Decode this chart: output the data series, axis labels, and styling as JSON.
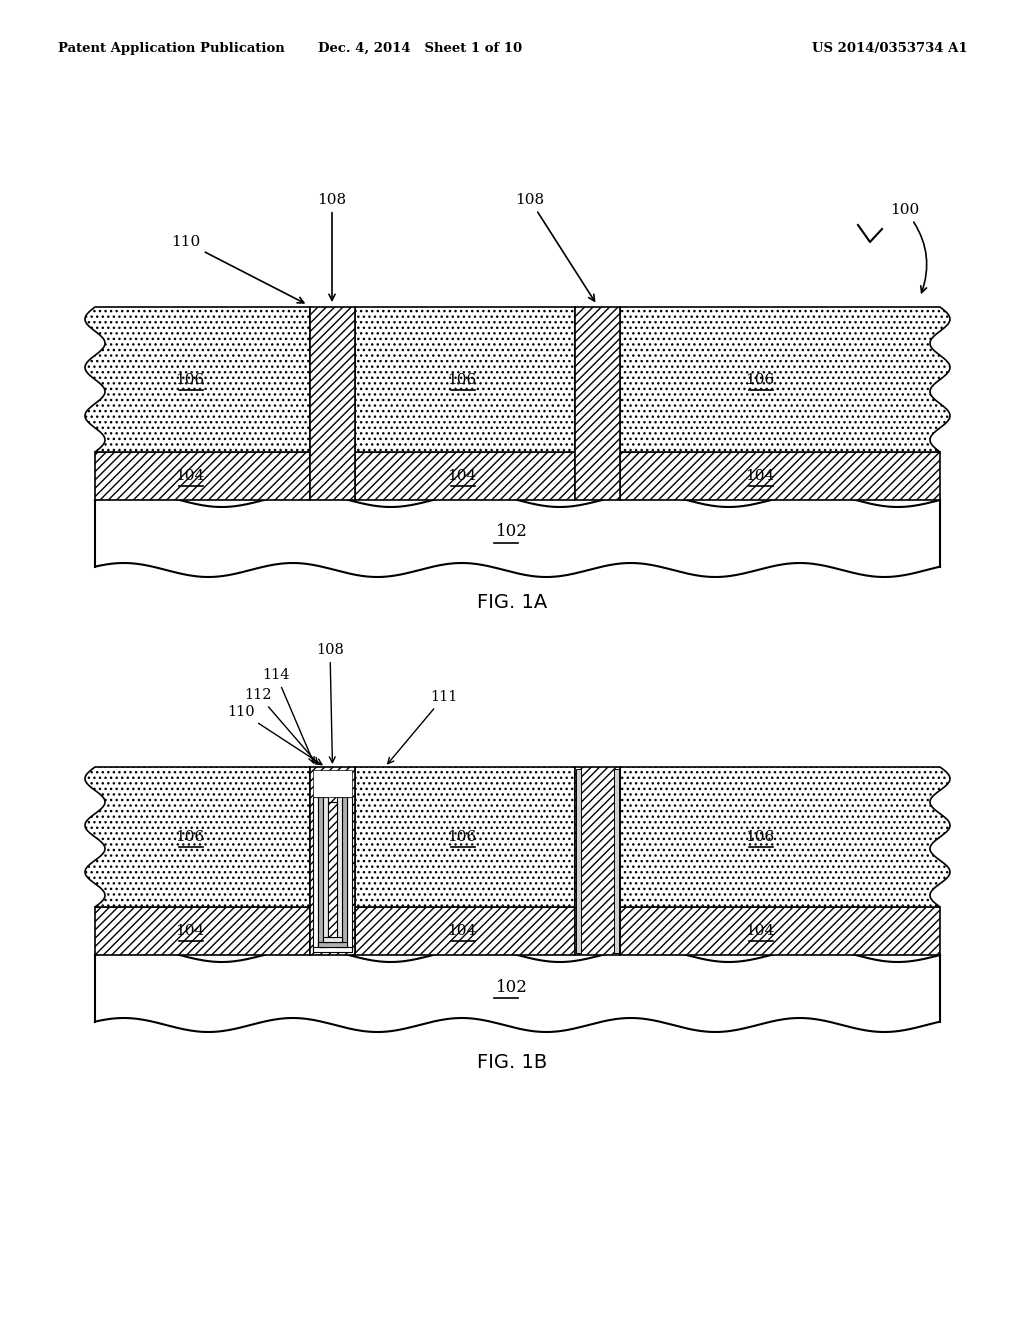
{
  "header_left": "Patent Application Publication",
  "header_mid": "Dec. 4, 2014   Sheet 1 of 10",
  "header_right": "US 2014/0353734 A1",
  "fig1a_label": "FIG. 1A",
  "fig1b_label": "FIG. 1B",
  "background": "#ffffff",
  "line_color": "#000000"
}
